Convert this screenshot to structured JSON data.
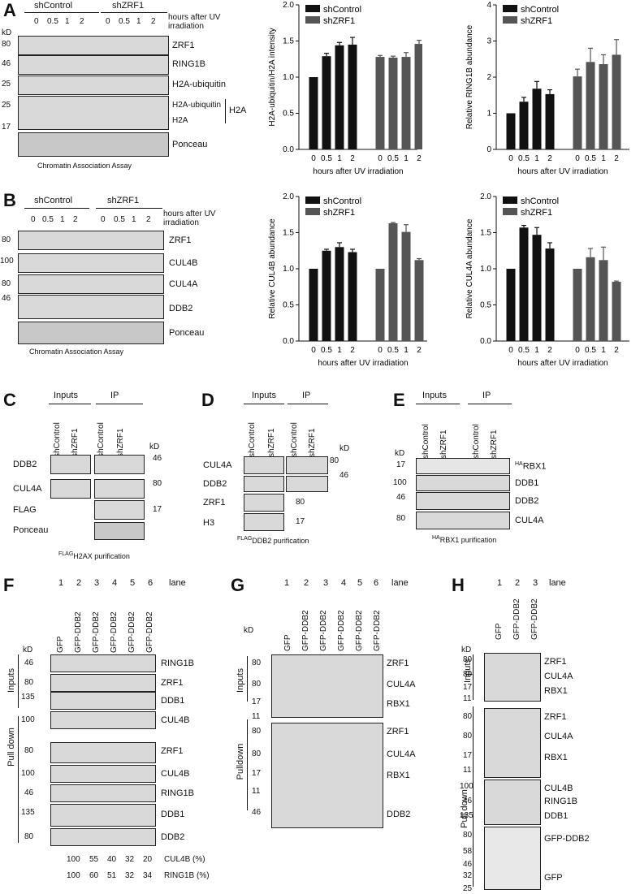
{
  "panels": {
    "A": {
      "letter": "A",
      "groups": [
        "shControl",
        "shZRF1"
      ],
      "timepoints": [
        "0",
        "0.5",
        "1",
        "2"
      ],
      "time_label": "hours after UV irradiation",
      "kd_label": "kD",
      "blots": [
        {
          "marker": "80",
          "label": "ZRF1"
        },
        {
          "marker": "46",
          "label": "RING1B"
        },
        {
          "marker": "25",
          "label": "H2A-ubiquitin"
        },
        {
          "marker": "25",
          "label": "H2A-ubiquitin"
        },
        {
          "marker": "17",
          "label": "H2A"
        },
        {
          "marker": "",
          "label": "Ponceau"
        }
      ],
      "bracket_label": "H2A",
      "caption": "Chromatin Association Assay"
    },
    "B": {
      "letter": "B",
      "groups": [
        "shControl",
        "shZRF1"
      ],
      "timepoints": [
        "0",
        "0.5",
        "1",
        "2"
      ],
      "time_label": "hours after UV irradiation",
      "blots": [
        {
          "marker": "80",
          "label": "ZRF1"
        },
        {
          "marker": "100",
          "label": "CUL4B"
        },
        {
          "marker": "80",
          "label": "CUL4A"
        },
        {
          "marker": "46",
          "label": "DDB2"
        },
        {
          "marker": "",
          "label": "Ponceau"
        }
      ],
      "caption": "Chromatin Association Assay"
    },
    "C": {
      "letter": "C",
      "headers": [
        "Inputs",
        "IP"
      ],
      "lanes": [
        "shControl",
        "shZRF1",
        "shControl",
        "shZRF1"
      ],
      "kd_label": "kD",
      "rows": [
        {
          "label": "DDB2",
          "marker": "46"
        },
        {
          "label": "CUL4A",
          "marker": "80"
        },
        {
          "label": "FLAG",
          "marker": "17"
        },
        {
          "label": "Ponceau",
          "marker": ""
        }
      ],
      "caption_sup": "FLAG",
      "caption": "H2AX purification"
    },
    "D": {
      "letter": "D",
      "headers": [
        "Inputs",
        "IP"
      ],
      "lanes": [
        "shControl",
        "shZRF1",
        "shControl",
        "shZRF1"
      ],
      "kd_label": "kD",
      "rows": [
        {
          "label": "CUL4A",
          "marker": "80"
        },
        {
          "label": "DDB2",
          "marker": "46"
        },
        {
          "label": "ZRF1",
          "marker": "80"
        },
        {
          "label": "H3",
          "marker": "17"
        }
      ],
      "caption_sup": "FLAG",
      "caption": "DDB2 purification"
    },
    "E": {
      "letter": "E",
      "headers": [
        "Inputs",
        "IP"
      ],
      "lanes": [
        "shControl",
        "shZRF1",
        "shControl",
        "shZRF1"
      ],
      "kd_label": "kD",
      "rows": [
        {
          "label": "RBX1",
          "label_sup": "HA",
          "marker": "17"
        },
        {
          "label": "DDB1",
          "marker": "100"
        },
        {
          "label": "DDB2",
          "marker": "46"
        },
        {
          "label": "CUL4A",
          "marker": "80"
        }
      ],
      "caption_sup": "HA",
      "caption": "RBX1 purification"
    },
    "F": {
      "letter": "F",
      "lane_numbers": [
        "1",
        "2",
        "3",
        "4",
        "5",
        "6"
      ],
      "lane_word": "lane",
      "lanes": [
        "GFP",
        "GFP-DDB2",
        "GFP-DDB2",
        "GFP-DDB2",
        "GFP-DDB2",
        "GFP-DDB2"
      ],
      "kd_label": "kD",
      "section_inputs": "Inputs",
      "section_pulldown": "Pull down",
      "inputs": [
        {
          "marker": "46",
          "label": "RING1B"
        },
        {
          "marker": "80",
          "label": "ZRF1"
        },
        {
          "marker": "135",
          "label": "DDB1"
        },
        {
          "marker": "100",
          "label": "CUL4B"
        }
      ],
      "pulldown": [
        {
          "marker": "80",
          "label": "ZRF1"
        },
        {
          "marker": "100",
          "label": "CUL4B"
        },
        {
          "marker": "46",
          "label": "RING1B"
        },
        {
          "marker": "135",
          "label": "DDB1"
        },
        {
          "marker": "80",
          "label": "DDB2"
        }
      ],
      "quant": [
        {
          "values": [
            "100",
            "55",
            "40",
            "32",
            "20"
          ],
          "label": "CUL4B (%)"
        },
        {
          "values": [
            "100",
            "60",
            "51",
            "32",
            "34"
          ],
          "label": "RING1B (%)"
        }
      ]
    },
    "G": {
      "letter": "G",
      "lane_numbers": [
        "1",
        "2",
        "3",
        "4",
        "5",
        "6"
      ],
      "lane_word": "lane",
      "lanes": [
        "GFP",
        "GFP-DDB2",
        "GFP-DDB2",
        "GFP-DDB2",
        "GFP-DDB2",
        "GFP-DDB2"
      ],
      "kd_label": "kD",
      "section_inputs": "Inputs",
      "section_pulldown": "Pulldown",
      "inputs": [
        {
          "marker": "80",
          "label": "ZRF1"
        },
        {
          "marker": "80",
          "label": "CUL4A"
        },
        {
          "marker": "17",
          "label": "RBX1"
        },
        {
          "marker": "11",
          "label": ""
        }
      ],
      "pulldown": [
        {
          "marker": "80",
          "label": "ZRF1"
        },
        {
          "marker": "80",
          "label": "CUL4A"
        },
        {
          "marker": "17",
          "label": "RBX1"
        },
        {
          "marker": "11",
          "label": ""
        },
        {
          "marker": "46",
          "label": "DDB2"
        }
      ]
    },
    "H": {
      "letter": "H",
      "lane_numbers": [
        "1",
        "2",
        "3"
      ],
      "lane_word": "lane",
      "lanes": [
        "GFP",
        "GFP-DDB2",
        "GFP-DDB2"
      ],
      "kd_label": "kD",
      "section_inputs": "Inputs",
      "section_pulldown": "Pull down",
      "inputs": [
        {
          "marker": "80",
          "label": "ZRF1"
        },
        {
          "marker": "80",
          "label": "CUL4A"
        },
        {
          "marker": "17",
          "label": "RBX1"
        },
        {
          "marker": "11",
          "label": ""
        }
      ],
      "pulldown": [
        {
          "marker": "80",
          "label": "ZRF1"
        },
        {
          "marker": "80",
          "label": "CUL4A"
        },
        {
          "marker": "17",
          "label": "RBX1"
        },
        {
          "marker": "11",
          "label": ""
        },
        {
          "marker": "100",
          "label": "CUL4B"
        },
        {
          "marker": "46",
          "label": "RING1B"
        },
        {
          "marker": "135",
          "label": "DDB1"
        },
        {
          "marker": "80",
          "label": "GFP-DDB2"
        },
        {
          "marker": "58",
          "label": ""
        },
        {
          "marker": "46",
          "label": ""
        },
        {
          "marker": "32",
          "label": "GFP"
        },
        {
          "marker": "25",
          "label": ""
        }
      ]
    }
  },
  "colors": {
    "control": "#111111",
    "zrf1": "#555555"
  },
  "chart_data": [
    {
      "id": "A1",
      "type": "bar",
      "categories": [
        "0",
        "0.5",
        "1",
        "2"
      ],
      "series": [
        {
          "name": "shControl",
          "values": [
            1.0,
            1.29,
            1.44,
            1.45
          ],
          "errors": [
            0,
            0.04,
            0.04,
            0.1
          ]
        },
        {
          "name": "shZRF1",
          "values": [
            1.28,
            1.27,
            1.28,
            1.46
          ],
          "errors": [
            0.02,
            0.02,
            0.06,
            0.05
          ]
        }
      ],
      "xlabel": "hours after UV irradiation",
      "ylabel": "H2A-ubiquitin/H2A intensity",
      "ylim": [
        0,
        2.0
      ],
      "yticks": [
        "0.0",
        "0.5",
        "1.0",
        "1.5",
        "2.0"
      ],
      "legend": "top-left"
    },
    {
      "id": "A2",
      "type": "bar",
      "categories": [
        "0",
        "0.5",
        "1",
        "2"
      ],
      "series": [
        {
          "name": "shControl",
          "values": [
            1.0,
            1.32,
            1.68,
            1.53
          ],
          "errors": [
            0,
            0.12,
            0.2,
            0.12
          ]
        },
        {
          "name": "shZRF1",
          "values": [
            2.02,
            2.42,
            2.36,
            2.62
          ],
          "errors": [
            0.2,
            0.38,
            0.26,
            0.42
          ]
        }
      ],
      "xlabel": "hours after UV irradiation",
      "ylabel": "Relative RING1B abundance",
      "ylim": [
        0,
        4
      ],
      "yticks": [
        "0",
        "1",
        "2",
        "3",
        "4"
      ],
      "legend": "top-left"
    },
    {
      "id": "B1",
      "type": "bar",
      "categories": [
        "0",
        "0.5",
        "1",
        "2"
      ],
      "series": [
        {
          "name": "shControl",
          "values": [
            1.0,
            1.25,
            1.3,
            1.23
          ],
          "errors": [
            0,
            0.02,
            0.06,
            0.04
          ]
        },
        {
          "name": "shZRF1",
          "values": [
            1.0,
            1.63,
            1.51,
            1.12
          ],
          "errors": [
            0,
            0.01,
            0.1,
            0.02
          ]
        }
      ],
      "xlabel": "hours after UV irradiation",
      "ylabel": "Relative CUL4B abundance",
      "ylim": [
        0,
        2.0
      ],
      "yticks": [
        "0.0",
        "0.5",
        "1.0",
        "1.5",
        "2.0"
      ],
      "legend": "top-left"
    },
    {
      "id": "B2",
      "type": "bar",
      "categories": [
        "0",
        "0.5",
        "1",
        "2"
      ],
      "series": [
        {
          "name": "shControl",
          "values": [
            1.0,
            1.57,
            1.47,
            1.28
          ],
          "errors": [
            0,
            0.03,
            0.1,
            0.08
          ]
        },
        {
          "name": "shZRF1",
          "values": [
            1.0,
            1.16,
            1.12,
            0.82
          ],
          "errors": [
            0,
            0.12,
            0.18,
            0.01
          ]
        }
      ],
      "xlabel": "hours after UV irradiation",
      "ylabel": "Relative CUL4A abundance",
      "ylim": [
        0,
        2.0
      ],
      "yticks": [
        "0.0",
        "0.5",
        "1.0",
        "1.5",
        "2.0"
      ],
      "legend": "top-left"
    }
  ]
}
